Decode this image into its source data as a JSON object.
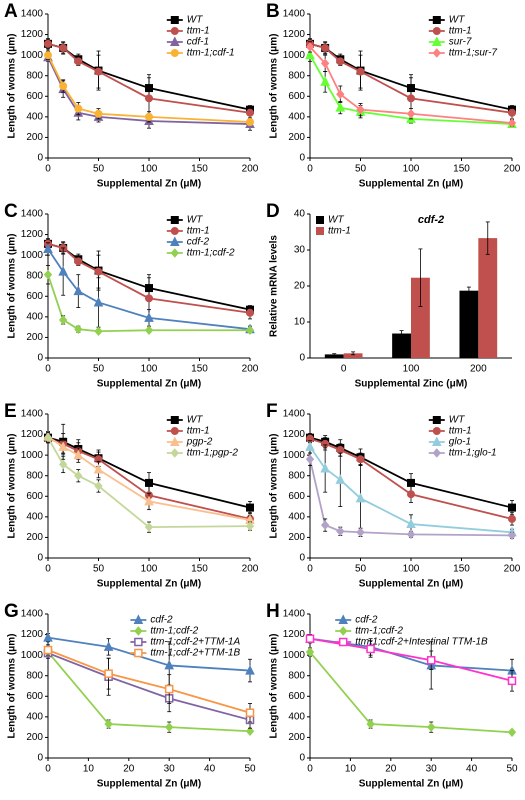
{
  "chart_data": [
    {
      "type": "line",
      "panel": "A",
      "xlabel": "Supplemental Zn (μM)",
      "ylabel": "Length of worms (μm)",
      "x": [
        0,
        15,
        30,
        50,
        100,
        200
      ],
      "xlim": [
        0,
        200
      ],
      "xticks": [
        0,
        50,
        100,
        150,
        200
      ],
      "ylim": [
        0,
        1400
      ],
      "yticks": [
        0,
        200,
        400,
        600,
        800,
        1000,
        1200,
        1400
      ],
      "legend": "upper right",
      "series": [
        {
          "name": "WT",
          "color": "#000000",
          "marker": "square",
          "values": [
            1110,
            1070,
            960,
            850,
            680,
            470
          ],
          "errors": [
            50,
            60,
            50,
            190,
            130,
            40
          ]
        },
        {
          "name": "ttm-1",
          "color": "#c0504d",
          "marker": "circle",
          "values": [
            1110,
            1070,
            940,
            840,
            580,
            440
          ],
          "errors": [
            40,
            50,
            40,
            160,
            200,
            60
          ]
        },
        {
          "name": "cdf-1",
          "color": "#8064a2",
          "marker": "triangle",
          "values": [
            980,
            670,
            440,
            400,
            360,
            330
          ],
          "errors": [
            40,
            80,
            70,
            50,
            70,
            60
          ]
        },
        {
          "name": "ttm-1;cdf-1",
          "color": "#f9b233",
          "marker": "circle",
          "values": [
            1000,
            700,
            480,
            430,
            400,
            350
          ],
          "errors": [
            40,
            60,
            60,
            50,
            50,
            30
          ]
        }
      ]
    },
    {
      "type": "line",
      "panel": "B",
      "xlabel": "Supplemental Zn (μM)",
      "ylabel": "Length of worms (μm)",
      "x": [
        0,
        15,
        30,
        50,
        100,
        200
      ],
      "xlim": [
        0,
        200
      ],
      "xticks": [
        0,
        50,
        100,
        150,
        200
      ],
      "ylim": [
        0,
        1400
      ],
      "yticks": [
        0,
        200,
        400,
        600,
        800,
        1000,
        1200,
        1400
      ],
      "legend": "upper right",
      "series": [
        {
          "name": "WT",
          "color": "#000000",
          "marker": "square",
          "values": [
            1110,
            1070,
            960,
            850,
            680,
            470
          ],
          "errors": [
            50,
            60,
            50,
            190,
            130,
            40
          ]
        },
        {
          "name": "ttm-1",
          "color": "#c0504d",
          "marker": "circle",
          "values": [
            1110,
            1070,
            940,
            840,
            580,
            440
          ],
          "errors": [
            40,
            50,
            40,
            160,
            200,
            60
          ]
        },
        {
          "name": "sur-7",
          "color": "#66ff33",
          "marker": "triangle",
          "values": [
            1000,
            740,
            490,
            450,
            380,
            330
          ],
          "errors": [
            60,
            100,
            60,
            60,
            40,
            30
          ]
        },
        {
          "name": "ttm-1;sur-7",
          "color": "#ff8080",
          "marker": "diamond",
          "values": [
            1080,
            920,
            620,
            470,
            430,
            340
          ],
          "errors": [
            50,
            80,
            80,
            60,
            50,
            30
          ]
        }
      ]
    },
    {
      "type": "line",
      "panel": "C",
      "xlabel": "Supplemental Zn (μM)",
      "ylabel": "Length of worms (μm)",
      "x": [
        0,
        15,
        30,
        50,
        100,
        200
      ],
      "xlim": [
        0,
        200
      ],
      "xticks": [
        0,
        50,
        100,
        150,
        200
      ],
      "ylim": [
        0,
        1400
      ],
      "yticks": [
        0,
        200,
        400,
        600,
        800,
        1000,
        1200,
        1400
      ],
      "legend": "upper right",
      "series": [
        {
          "name": "WT",
          "color": "#000000",
          "marker": "square",
          "values": [
            1110,
            1070,
            960,
            850,
            680,
            470
          ],
          "errors": [
            50,
            60,
            50,
            190,
            130,
            40
          ]
        },
        {
          "name": "ttm-1",
          "color": "#c0504d",
          "marker": "circle",
          "values": [
            1110,
            1070,
            940,
            840,
            580,
            440
          ],
          "errors": [
            40,
            50,
            40,
            160,
            200,
            60
          ]
        },
        {
          "name": "cdf-2",
          "color": "#4f81bd",
          "marker": "triangle",
          "values": [
            1060,
            840,
            650,
            540,
            390,
            280
          ],
          "errors": [
            60,
            230,
            160,
            240,
            80,
            30
          ]
        },
        {
          "name": "ttm-1;cdf-2",
          "color": "#92d050",
          "marker": "diamond",
          "values": [
            810,
            370,
            280,
            260,
            270,
            270
          ],
          "errors": [
            90,
            40,
            30,
            20,
            20,
            20
          ]
        }
      ]
    },
    {
      "type": "bar",
      "panel": "D",
      "title": "cdf-2",
      "xlabel": "Supplemental Zinc (μM)",
      "ylabel": "Relative mRNA levels",
      "categories": [
        "0",
        "100",
        "200"
      ],
      "ylim": [
        0,
        40
      ],
      "yticks": [
        0,
        10,
        20,
        30,
        40
      ],
      "legend": "upper left",
      "series": [
        {
          "name": "WT",
          "color": "#000000",
          "values": [
            1,
            6.8,
            18.7
          ],
          "errors": [
            0.2,
            0.8,
            1
          ]
        },
        {
          "name": "ttm-1",
          "color": "#c0504d",
          "values": [
            1.3,
            22.3,
            33.3
          ],
          "errors": [
            0.4,
            8,
            4.5
          ]
        }
      ]
    },
    {
      "type": "line",
      "panel": "E",
      "xlabel": "Supplemental Zn (μM)",
      "ylabel": "Length of worms (μm)",
      "x": [
        0,
        15,
        30,
        50,
        100,
        200
      ],
      "xlim": [
        0,
        200
      ],
      "xticks": [
        0,
        50,
        100,
        150,
        200
      ],
      "ylim": [
        0,
        1400
      ],
      "yticks": [
        0,
        200,
        400,
        600,
        800,
        1000,
        1200,
        1400
      ],
      "legend": "upper right",
      "series": [
        {
          "name": "WT",
          "color": "#000000",
          "marker": "square",
          "values": [
            1170,
            1130,
            1060,
            970,
            730,
            490
          ],
          "errors": [
            40,
            170,
            90,
            80,
            100,
            60
          ]
        },
        {
          "name": "ttm-1",
          "color": "#c0504d",
          "marker": "circle",
          "values": [
            1160,
            1110,
            1040,
            960,
            610,
            380
          ],
          "errors": [
            40,
            100,
            80,
            70,
            90,
            60
          ]
        },
        {
          "name": "pgp-2",
          "color": "#fabf8f",
          "marker": "triangle",
          "values": [
            1180,
            1080,
            1000,
            860,
            550,
            370
          ],
          "errors": [
            50,
            60,
            70,
            80,
            80,
            40
          ]
        },
        {
          "name": "ttm-1;pgp-2",
          "color": "#c4d79b",
          "marker": "diamond",
          "values": [
            1170,
            910,
            800,
            700,
            300,
            310
          ],
          "errors": [
            50,
            80,
            60,
            60,
            50,
            40
          ]
        }
      ]
    },
    {
      "type": "line",
      "panel": "F",
      "xlabel": "Supplemental Zn (μM)",
      "ylabel": "Length of worms (μm)",
      "x": [
        0,
        15,
        30,
        50,
        100,
        200
      ],
      "xlim": [
        0,
        200
      ],
      "xticks": [
        0,
        50,
        100,
        150,
        200
      ],
      "ylim": [
        0,
        1400
      ],
      "yticks": [
        0,
        200,
        400,
        600,
        800,
        1000,
        1200,
        1400
      ],
      "legend": "upper right",
      "series": [
        {
          "name": "WT",
          "color": "#000000",
          "marker": "square",
          "values": [
            1170,
            1130,
            1070,
            980,
            730,
            490
          ],
          "errors": [
            40,
            60,
            80,
            80,
            90,
            70
          ]
        },
        {
          "name": "ttm-1",
          "color": "#c0504d",
          "marker": "circle",
          "values": [
            1160,
            1110,
            1050,
            960,
            620,
            380
          ],
          "errors": [
            40,
            60,
            60,
            60,
            80,
            60
          ]
        },
        {
          "name": "glo-1",
          "color": "#93cddd",
          "marker": "triangle",
          "values": [
            1080,
            870,
            760,
            580,
            330,
            250
          ],
          "errors": [
            60,
            230,
            260,
            330,
            90,
            30
          ]
        },
        {
          "name": "ttm-1;glo-1",
          "color": "#b3a2c7",
          "marker": "diamond",
          "values": [
            960,
            320,
            260,
            250,
            230,
            220
          ],
          "errors": [
            60,
            60,
            40,
            40,
            30,
            30
          ]
        }
      ]
    },
    {
      "type": "line",
      "panel": "G",
      "xlabel": "Supplemental Zn (μM)",
      "ylabel": "Length of worms (μm)",
      "x": [
        0,
        15,
        30,
        50
      ],
      "xlim": [
        0,
        50
      ],
      "xticks": [
        0,
        10,
        20,
        30,
        40,
        50
      ],
      "ylim": [
        0,
        1400
      ],
      "yticks": [
        0,
        200,
        400,
        600,
        800,
        1000,
        1200,
        1400
      ],
      "legend": "upper right",
      "series": [
        {
          "name": "cdf-2",
          "color": "#4f81bd",
          "marker": "triangle",
          "values": [
            1170,
            1080,
            900,
            850
          ],
          "errors": [
            40,
            80,
            230,
            110
          ]
        },
        {
          "name": "ttm-1;cdf-2",
          "color": "#92d050",
          "marker": "diamond",
          "values": [
            1030,
            330,
            300,
            260
          ],
          "errors": [
            40,
            40,
            50,
            20
          ]
        },
        {
          "name": "ttm-1;cdf-2+TTM-1A",
          "color": "#8064a2",
          "marker": "open-square",
          "values": [
            1020,
            790,
            580,
            370
          ],
          "errors": [
            50,
            180,
            130,
            80
          ]
        },
        {
          "name": "ttm-1;cdf-2+TTM-1B",
          "color": "#f79646",
          "marker": "open-square",
          "values": [
            1050,
            820,
            670,
            440
          ],
          "errors": [
            50,
            150,
            140,
            90
          ]
        }
      ]
    },
    {
      "type": "line",
      "panel": "H",
      "xlabel": "Supplemental Zn (μM)",
      "ylabel": "Length of worms (μm)",
      "x": [
        0,
        15,
        30,
        50
      ],
      "xlim": [
        0,
        50
      ],
      "xticks": [
        0,
        10,
        20,
        30,
        40,
        50
      ],
      "ylim": [
        0,
        1400
      ],
      "yticks": [
        0,
        200,
        400,
        600,
        800,
        1000,
        1200,
        1400
      ],
      "legend": "upper right",
      "series": [
        {
          "name": "cdf-2",
          "color": "#4f81bd",
          "marker": "triangle",
          "values": [
            1160,
            1080,
            900,
            850
          ],
          "errors": [
            40,
            80,
            230,
            110
          ]
        },
        {
          "name": "ttm-1;cdf-2",
          "color": "#92d050",
          "marker": "diamond",
          "values": [
            1030,
            330,
            300,
            250
          ],
          "errors": [
            40,
            40,
            50,
            20
          ]
        },
        {
          "name": "ttm-1;cdf-2+Intestinal TTM-1B",
          "color": "#ff33cc",
          "marker": "open-square",
          "values": [
            1160,
            1060,
            950,
            750
          ],
          "errors": [
            40,
            80,
            90,
            100
          ]
        }
      ]
    }
  ]
}
